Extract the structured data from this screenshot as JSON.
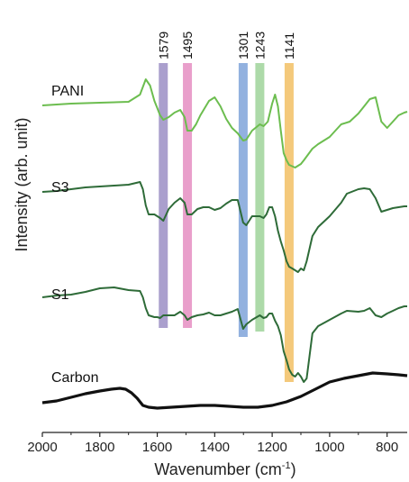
{
  "chart_data": {
    "type": "line",
    "xlabel": "Wavenumber (cm",
    "xlabel_sup": "-1",
    "xlabel_close": ")",
    "ylabel": "Intensity (arb. unit)",
    "xlim": [
      2000,
      730
    ],
    "x_reversed": true,
    "x_ticks": [
      2000,
      1800,
      1600,
      1400,
      1200,
      1000,
      800
    ],
    "y_ticks_shown": false,
    "grid": false,
    "bands": [
      {
        "label": "1579",
        "x": 1579,
        "color": "#9b8ec4"
      },
      {
        "label": "1495",
        "x": 1495,
        "color": "#e58ec2"
      },
      {
        "label": "1301",
        "x": 1301,
        "color": "#7fa3d9"
      },
      {
        "label": "1243",
        "x": 1243,
        "color": "#9fd39a"
      },
      {
        "label": "1141",
        "x": 1141,
        "color": "#f2c064"
      }
    ],
    "series": [
      {
        "name": "PANI",
        "color": "#6cbd4f",
        "points": [
          [
            2000,
            117
          ],
          [
            1900,
            115
          ],
          [
            1800,
            114
          ],
          [
            1700,
            113
          ],
          [
            1660,
            105
          ],
          [
            1640,
            88
          ],
          [
            1625,
            95
          ],
          [
            1610,
            112
          ],
          [
            1600,
            120
          ],
          [
            1590,
            128
          ],
          [
            1579,
            133
          ],
          [
            1560,
            130
          ],
          [
            1540,
            125
          ],
          [
            1520,
            122
          ],
          [
            1505,
            130
          ],
          [
            1495,
            145
          ],
          [
            1480,
            145
          ],
          [
            1465,
            138
          ],
          [
            1450,
            128
          ],
          [
            1420,
            112
          ],
          [
            1400,
            108
          ],
          [
            1380,
            118
          ],
          [
            1360,
            132
          ],
          [
            1340,
            142
          ],
          [
            1320,
            148
          ],
          [
            1301,
            156
          ],
          [
            1290,
            155
          ],
          [
            1270,
            145
          ],
          [
            1243,
            138
          ],
          [
            1230,
            140
          ],
          [
            1215,
            135
          ],
          [
            1200,
            115
          ],
          [
            1190,
            105
          ],
          [
            1180,
            118
          ],
          [
            1170,
            145
          ],
          [
            1160,
            170
          ],
          [
            1150,
            178
          ],
          [
            1141,
            183
          ],
          [
            1120,
            186
          ],
          [
            1100,
            182
          ],
          [
            1090,
            178
          ],
          [
            1060,
            165
          ],
          [
            1040,
            160
          ],
          [
            1000,
            152
          ],
          [
            960,
            138
          ],
          [
            930,
            135
          ],
          [
            900,
            126
          ],
          [
            880,
            118
          ],
          [
            860,
            110
          ],
          [
            840,
            108
          ],
          [
            820,
            135
          ],
          [
            800,
            142
          ],
          [
            780,
            135
          ],
          [
            760,
            128
          ],
          [
            740,
            125
          ],
          [
            730,
            124
          ]
        ]
      },
      {
        "name": "S3",
        "color": "#2e6b38",
        "points": [
          [
            2000,
            213
          ],
          [
            1950,
            212
          ],
          [
            1900,
            210
          ],
          [
            1850,
            208
          ],
          [
            1800,
            207
          ],
          [
            1750,
            206
          ],
          [
            1700,
            205
          ],
          [
            1660,
            202
          ],
          [
            1650,
            210
          ],
          [
            1640,
            228
          ],
          [
            1630,
            238
          ],
          [
            1610,
            238
          ],
          [
            1600,
            240
          ],
          [
            1590,
            242
          ],
          [
            1579,
            245
          ],
          [
            1560,
            232
          ],
          [
            1540,
            225
          ],
          [
            1520,
            220
          ],
          [
            1505,
            225
          ],
          [
            1495,
            238
          ],
          [
            1480,
            238
          ],
          [
            1460,
            232
          ],
          [
            1440,
            230
          ],
          [
            1420,
            230
          ],
          [
            1400,
            233
          ],
          [
            1380,
            231
          ],
          [
            1360,
            226
          ],
          [
            1340,
            222
          ],
          [
            1320,
            222
          ],
          [
            1301,
            247
          ],
          [
            1290,
            250
          ],
          [
            1270,
            240
          ],
          [
            1243,
            240
          ],
          [
            1230,
            242
          ],
          [
            1220,
            238
          ],
          [
            1210,
            230
          ],
          [
            1200,
            230
          ],
          [
            1190,
            240
          ],
          [
            1180,
            256
          ],
          [
            1170,
            268
          ],
          [
            1160,
            278
          ],
          [
            1150,
            290
          ],
          [
            1141,
            296
          ],
          [
            1130,
            298
          ],
          [
            1120,
            300
          ],
          [
            1110,
            302
          ],
          [
            1100,
            298
          ],
          [
            1090,
            300
          ],
          [
            1080,
            290
          ],
          [
            1060,
            262
          ],
          [
            1040,
            252
          ],
          [
            1000,
            240
          ],
          [
            960,
            225
          ],
          [
            940,
            215
          ],
          [
            900,
            210
          ],
          [
            880,
            209
          ],
          [
            860,
            210
          ],
          [
            840,
            220
          ],
          [
            820,
            235
          ],
          [
            800,
            233
          ],
          [
            780,
            231
          ],
          [
            760,
            230
          ],
          [
            740,
            229
          ],
          [
            730,
            229
          ]
        ]
      },
      {
        "name": "S1",
        "color": "#2e6b38",
        "points": [
          [
            2000,
            330
          ],
          [
            1950,
            328
          ],
          [
            1900,
            327
          ],
          [
            1850,
            324
          ],
          [
            1800,
            320
          ],
          [
            1750,
            319
          ],
          [
            1700,
            322
          ],
          [
            1660,
            323
          ],
          [
            1650,
            330
          ],
          [
            1640,
            342
          ],
          [
            1630,
            350
          ],
          [
            1610,
            352
          ],
          [
            1600,
            352
          ],
          [
            1590,
            353
          ],
          [
            1579,
            350
          ],
          [
            1560,
            350
          ],
          [
            1540,
            350
          ],
          [
            1520,
            346
          ],
          [
            1505,
            350
          ],
          [
            1495,
            355
          ],
          [
            1480,
            352
          ],
          [
            1460,
            350
          ],
          [
            1440,
            349
          ],
          [
            1420,
            347
          ],
          [
            1400,
            350
          ],
          [
            1380,
            350
          ],
          [
            1360,
            348
          ],
          [
            1340,
            346
          ],
          [
            1320,
            343
          ],
          [
            1301,
            365
          ],
          [
            1290,
            360
          ],
          [
            1270,
            355
          ],
          [
            1243,
            350
          ],
          [
            1230,
            353
          ],
          [
            1220,
            352
          ],
          [
            1210,
            348
          ],
          [
            1200,
            348
          ],
          [
            1190,
            356
          ],
          [
            1180,
            362
          ],
          [
            1170,
            372
          ],
          [
            1160,
            390
          ],
          [
            1150,
            400
          ],
          [
            1141,
            410
          ],
          [
            1130,
            416
          ],
          [
            1120,
            418
          ],
          [
            1110,
            414
          ],
          [
            1100,
            418
          ],
          [
            1090,
            424
          ],
          [
            1080,
            420
          ],
          [
            1070,
            395
          ],
          [
            1060,
            370
          ],
          [
            1040,
            362
          ],
          [
            1000,
            355
          ],
          [
            960,
            348
          ],
          [
            940,
            345
          ],
          [
            900,
            346
          ],
          [
            880,
            345
          ],
          [
            860,
            342
          ],
          [
            840,
            350
          ],
          [
            820,
            352
          ],
          [
            800,
            348
          ],
          [
            780,
            345
          ],
          [
            760,
            342
          ],
          [
            740,
            340
          ],
          [
            730,
            340
          ]
        ]
      },
      {
        "name": "Carbon",
        "color": "#111111",
        "points": [
          [
            2000,
            447
          ],
          [
            1950,
            445
          ],
          [
            1900,
            441
          ],
          [
            1850,
            437
          ],
          [
            1800,
            434
          ],
          [
            1760,
            432
          ],
          [
            1730,
            431
          ],
          [
            1710,
            432
          ],
          [
            1690,
            436
          ],
          [
            1670,
            442
          ],
          [
            1650,
            450
          ],
          [
            1630,
            452
          ],
          [
            1600,
            453
          ],
          [
            1550,
            452
          ],
          [
            1500,
            451
          ],
          [
            1450,
            450
          ],
          [
            1400,
            450
          ],
          [
            1350,
            451
          ],
          [
            1300,
            452
          ],
          [
            1250,
            452
          ],
          [
            1200,
            450
          ],
          [
            1150,
            446
          ],
          [
            1100,
            440
          ],
          [
            1050,
            432
          ],
          [
            1000,
            424
          ],
          [
            950,
            420
          ],
          [
            900,
            417
          ],
          [
            850,
            414
          ],
          [
            800,
            415
          ],
          [
            760,
            416
          ],
          [
            730,
            417
          ]
        ]
      }
    ]
  }
}
